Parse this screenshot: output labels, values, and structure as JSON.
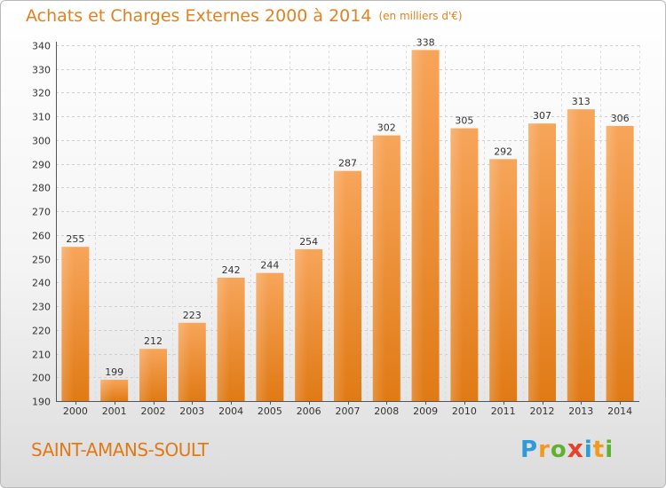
{
  "header": {
    "title": "Achats et Charges Externes 2000 à 2014",
    "subtitle": "(en milliers d'€)"
  },
  "footer": {
    "commune": "SAINT-AMANS-SOULT",
    "logo": {
      "p": "P",
      "r": "r",
      "o": "o",
      "x": "x",
      "i": "i",
      "t": "t",
      "i2": "i"
    }
  },
  "colors": {
    "bar": "#f08a25",
    "title": "#e2811e"
  },
  "chart_data": {
    "type": "bar",
    "categories": [
      "2000",
      "2001",
      "2002",
      "2003",
      "2004",
      "2005",
      "2006",
      "2007",
      "2008",
      "2009",
      "2010",
      "2011",
      "2012",
      "2013",
      "2014"
    ],
    "values": [
      255,
      199,
      212,
      223,
      242,
      244,
      254,
      287,
      302,
      338,
      305,
      292,
      307,
      313,
      306
    ],
    "title": "Achats et Charges Externes 2000 à 2014",
    "xlabel": "",
    "ylabel": "",
    "ylim": [
      190,
      340
    ],
    "yticks": [
      190,
      200,
      210,
      220,
      230,
      240,
      250,
      260,
      270,
      280,
      290,
      300,
      310,
      320,
      330,
      340
    ],
    "grid": true,
    "data_labels": true
  }
}
